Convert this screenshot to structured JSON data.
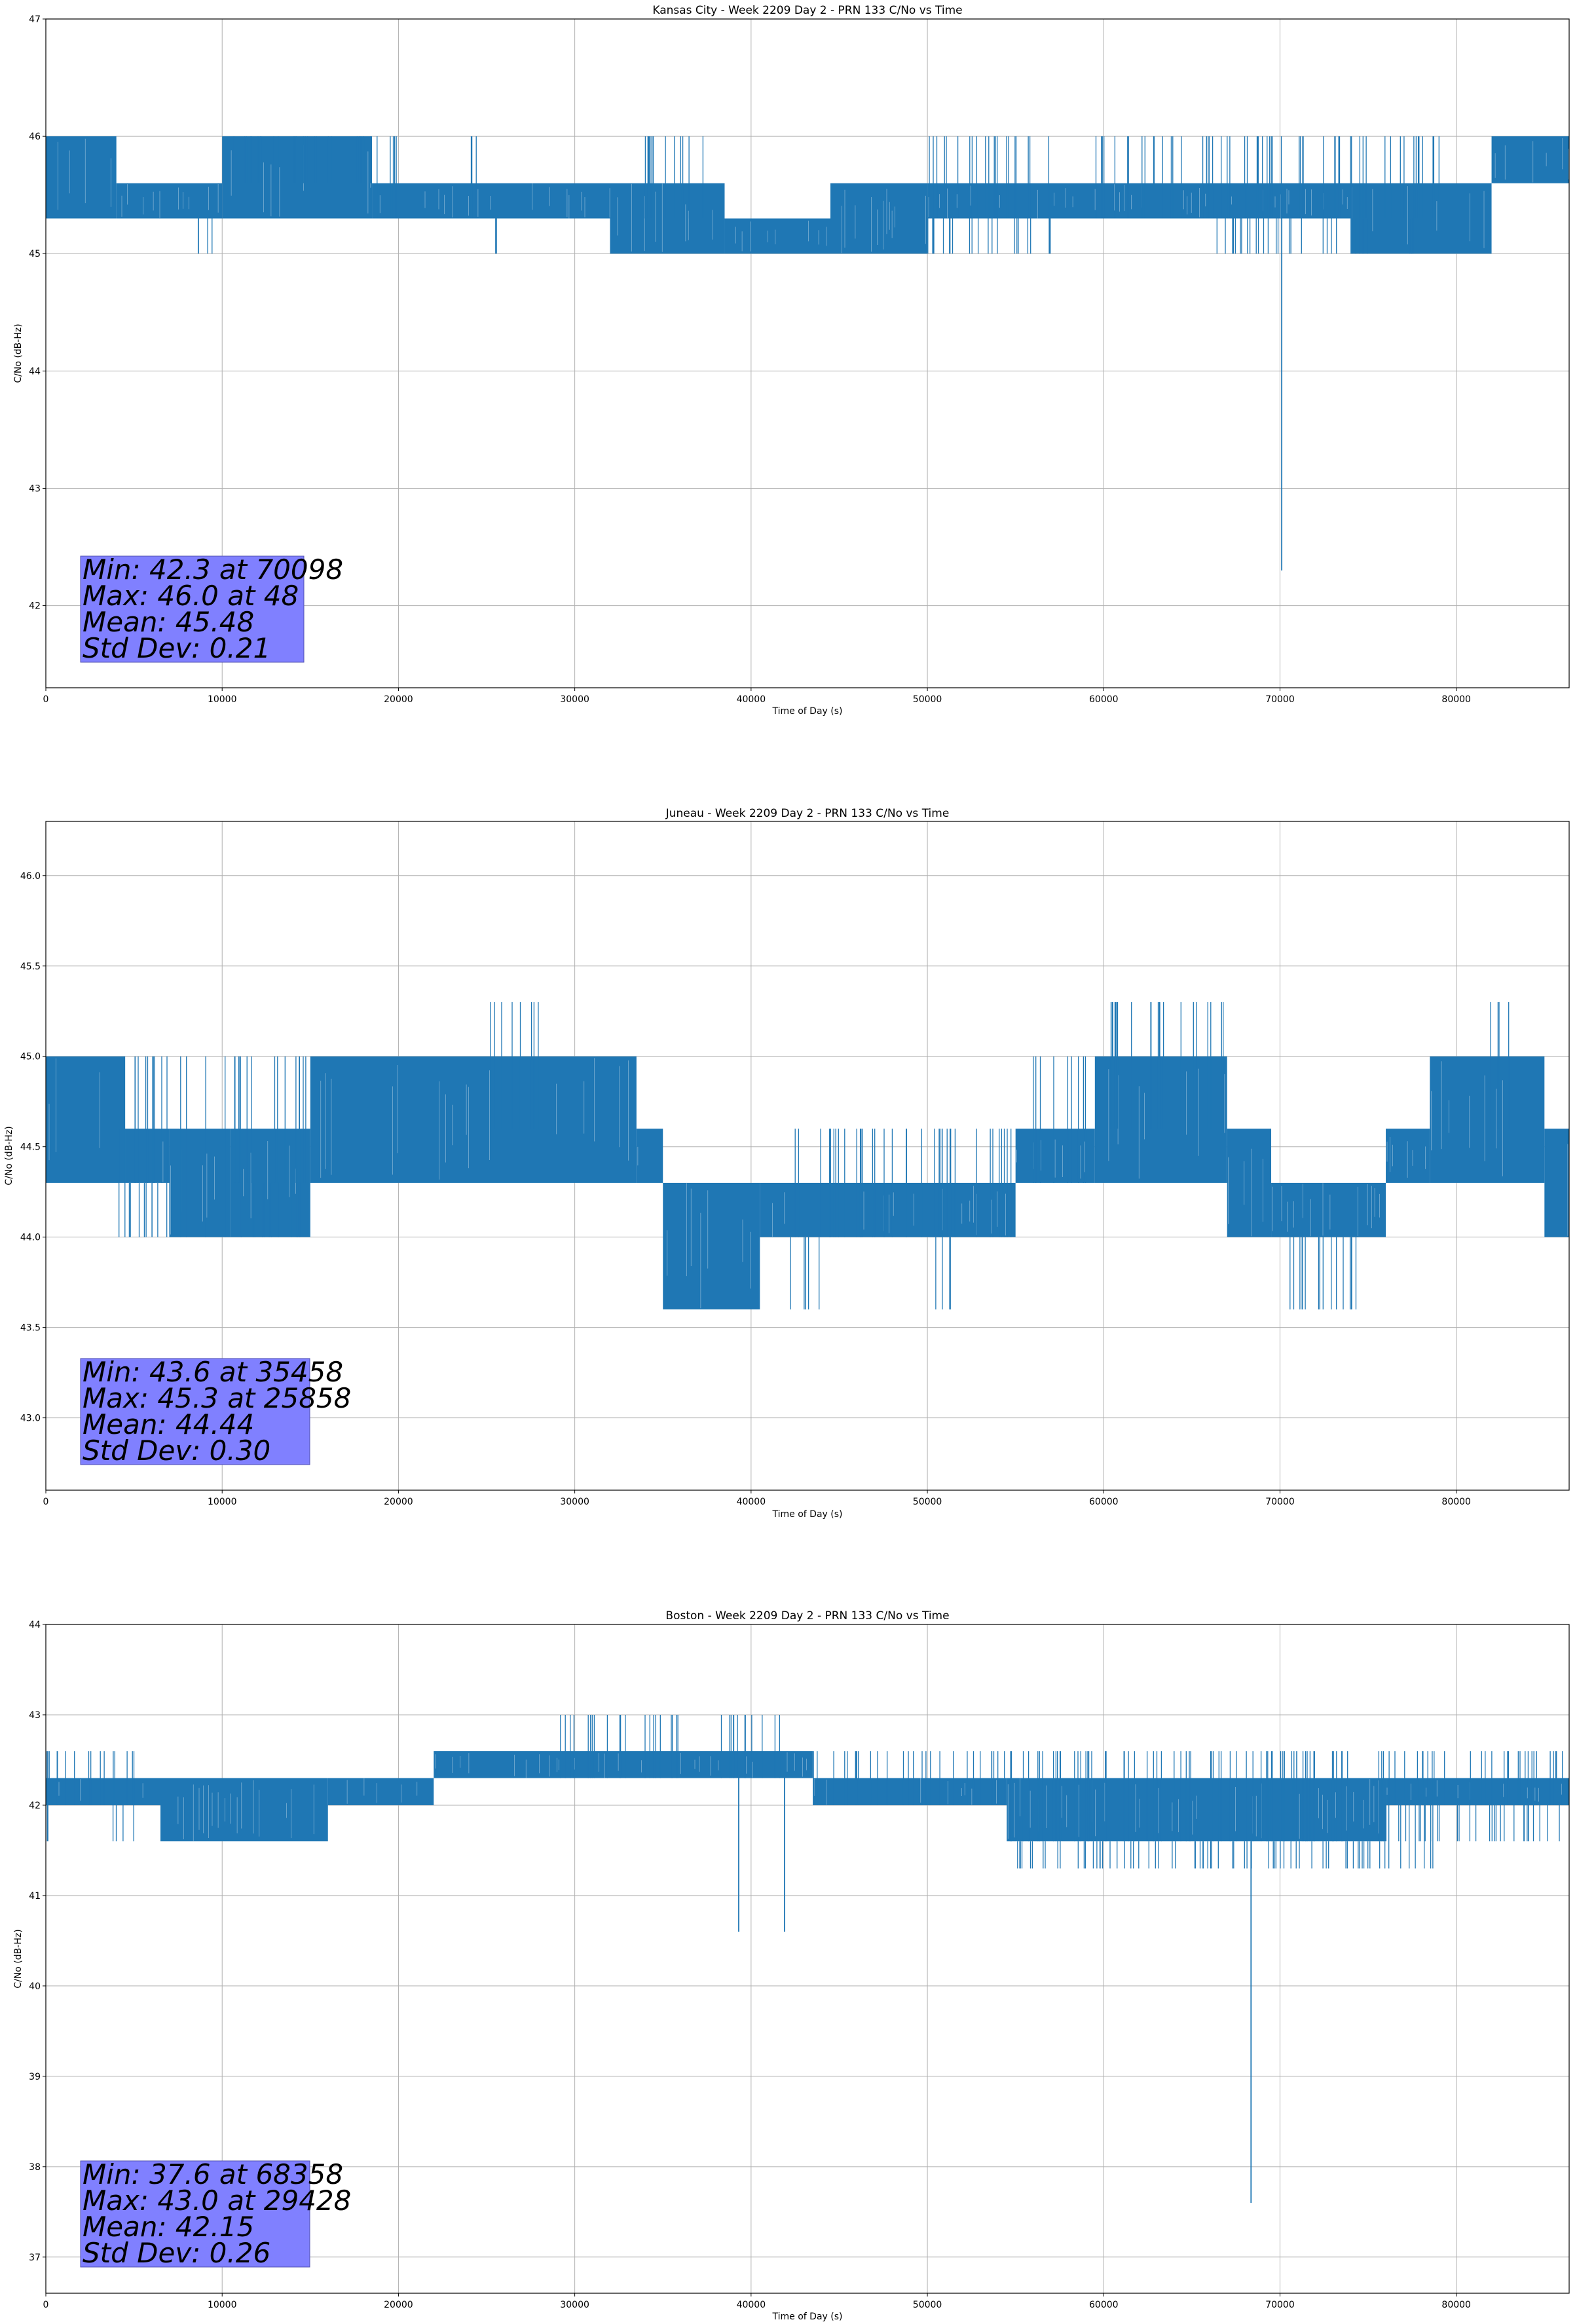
{
  "colors": {
    "line": "#1f77b4",
    "grid": "#b0b0b0",
    "stats_box_fill": "#8080ff",
    "stats_box_edge": "#5050b0",
    "axes": "#000000"
  },
  "chart_data": [
    {
      "type": "line",
      "title": "Kansas City - Week 2209 Day 2 - PRN 133 C/No vs Time",
      "xlabel": "Time of Day (s)",
      "ylabel": "C/No (dB-Hz)",
      "xlim": [
        0,
        86400
      ],
      "ylim": [
        41.3,
        47.0
      ],
      "xticks": [
        0,
        10000,
        20000,
        30000,
        40000,
        50000,
        60000,
        70000,
        80000
      ],
      "xtick_labels": [
        "0",
        "10000",
        "20000",
        "30000",
        "40000",
        "50000",
        "60000",
        "70000",
        "80000"
      ],
      "yticks": [
        42,
        43,
        44,
        45,
        46,
        47
      ],
      "ytick_labels": [
        "42",
        "43",
        "44",
        "45",
        "46",
        "47"
      ],
      "grid": true,
      "series": [
        {
          "name": "C/No",
          "quantization": [
            45.0,
            45.3,
            45.6,
            46.0
          ],
          "segments": [
            {
              "start": 0,
              "end": 4000,
              "base": 45.6,
              "low": 45.3,
              "high": 46.0
            },
            {
              "start": 4000,
              "end": 10000,
              "base": 45.3,
              "low": 45.3,
              "high": 45.6
            },
            {
              "start": 10000,
              "end": 18500,
              "base": 45.6,
              "low": 45.3,
              "high": 46.0
            },
            {
              "start": 18500,
              "end": 32000,
              "base": 45.3,
              "low": 45.3,
              "high": 45.6
            },
            {
              "start": 32000,
              "end": 38500,
              "base": 45.3,
              "low": 45.0,
              "high": 45.6
            },
            {
              "start": 38500,
              "end": 44500,
              "base": 45.0,
              "low": 45.0,
              "high": 45.3
            },
            {
              "start": 44500,
              "end": 50000,
              "base": 45.3,
              "low": 45.0,
              "high": 45.6
            },
            {
              "start": 50000,
              "end": 74000,
              "base": 45.3,
              "low": 45.3,
              "high": 45.6
            },
            {
              "start": 74000,
              "end": 82000,
              "base": 45.3,
              "low": 45.0,
              "high": 45.6
            },
            {
              "start": 82000,
              "end": 86400,
              "base": 45.6,
              "low": 45.6,
              "high": 46.0
            }
          ],
          "sparse_spikes": [
            {
              "start": 10000,
              "end": 20000,
              "value": 46.0
            },
            {
              "start": 24000,
              "end": 25000,
              "value": 46.0
            },
            {
              "start": 33000,
              "end": 36000,
              "value": 46.0
            },
            {
              "start": 36000,
              "end": 37500,
              "value": 46.0
            },
            {
              "start": 50000,
              "end": 52000,
              "value": 46.0
            },
            {
              "start": 52000,
              "end": 57000,
              "value": 46.0
            },
            {
              "start": 59500,
              "end": 66000,
              "value": 46.0
            },
            {
              "start": 66000,
              "end": 71000,
              "value": 46.0
            },
            {
              "start": 71000,
              "end": 80000,
              "value": 46.0
            },
            {
              "start": 9000,
              "end": 9500,
              "value": 45.0
            },
            {
              "start": 25500,
              "end": 26000,
              "value": 45.0
            },
            {
              "start": 49500,
              "end": 57000,
              "value": 45.0
            },
            {
              "start": 66000,
              "end": 75000,
              "value": 45.0
            },
            {
              "start": 77000,
              "end": 78500,
              "value": 45.0
            }
          ],
          "outliers": [
            {
              "x": 8650,
              "y": 45.0
            },
            {
              "x": 70098,
              "y": 42.3
            }
          ]
        }
      ],
      "stats": {
        "min_line": "Min: 42.3 at 70098",
        "max_line": "Max: 46.0 at 48",
        "mean_line": "Mean: 45.48",
        "std_line": "Std Dev: 0.21"
      }
    },
    {
      "type": "line",
      "title": "Juneau - Week 2209 Day 2 - PRN 133 C/No vs Time",
      "xlabel": "Time of Day (s)",
      "ylabel": "C/No (dB-Hz)",
      "xlim": [
        0,
        86400
      ],
      "ylim": [
        42.6,
        46.3
      ],
      "xticks": [
        0,
        10000,
        20000,
        30000,
        40000,
        50000,
        60000,
        70000,
        80000
      ],
      "xtick_labels": [
        "0",
        "10000",
        "20000",
        "30000",
        "40000",
        "50000",
        "60000",
        "70000",
        "80000"
      ],
      "yticks": [
        43.0,
        43.5,
        44.0,
        44.5,
        45.0,
        45.5,
        46.0
      ],
      "ytick_labels": [
        "43.0",
        "43.5",
        "44.0",
        "44.5",
        "45.0",
        "45.5",
        "46.0"
      ],
      "grid": true,
      "series": [
        {
          "name": "C/No",
          "quantization": [
            43.6,
            44.0,
            44.3,
            44.6,
            45.0,
            45.3
          ],
          "segments": [
            {
              "start": 0,
              "end": 4500,
              "base": 44.6,
              "low": 44.3,
              "high": 45.0
            },
            {
              "start": 4500,
              "end": 7000,
              "base": 44.3,
              "low": 44.3,
              "high": 44.6
            },
            {
              "start": 7000,
              "end": 10500,
              "base": 44.0,
              "low": 44.0,
              "high": 44.6
            },
            {
              "start": 10500,
              "end": 15000,
              "base": 44.3,
              "low": 44.0,
              "high": 44.6
            },
            {
              "start": 15000,
              "end": 33500,
              "base": 44.6,
              "low": 44.3,
              "high": 45.0
            },
            {
              "start": 33500,
              "end": 35000,
              "base": 44.3,
              "low": 44.3,
              "high": 44.6
            },
            {
              "start": 35000,
              "end": 40500,
              "base": 43.6,
              "low": 43.6,
              "high": 44.3
            },
            {
              "start": 40500,
              "end": 55000,
              "base": 44.0,
              "low": 44.0,
              "high": 44.3
            },
            {
              "start": 55000,
              "end": 59500,
              "base": 44.3,
              "low": 44.3,
              "high": 44.6
            },
            {
              "start": 59500,
              "end": 67000,
              "base": 44.6,
              "low": 44.3,
              "high": 45.0
            },
            {
              "start": 67000,
              "end": 69500,
              "base": 44.3,
              "low": 44.0,
              "high": 44.6
            },
            {
              "start": 69500,
              "end": 76000,
              "base": 44.0,
              "low": 44.0,
              "high": 44.3
            },
            {
              "start": 76000,
              "end": 78500,
              "base": 44.3,
              "low": 44.3,
              "high": 44.6
            },
            {
              "start": 78500,
              "end": 85000,
              "base": 44.6,
              "low": 44.3,
              "high": 45.0
            },
            {
              "start": 85000,
              "end": 86400,
              "base": 44.3,
              "low": 44.0,
              "high": 44.6
            }
          ],
          "sparse_spikes": [
            {
              "start": 25000,
              "end": 28000,
              "value": 45.3
            },
            {
              "start": 60000,
              "end": 67000,
              "value": 45.3
            },
            {
              "start": 81500,
              "end": 83000,
              "value": 45.3
            },
            {
              "start": 4500,
              "end": 15000,
              "value": 45.0
            },
            {
              "start": 42000,
              "end": 55000,
              "value": 44.6
            },
            {
              "start": 50000,
              "end": 51500,
              "value": 43.6
            },
            {
              "start": 69500,
              "end": 75000,
              "value": 43.6
            },
            {
              "start": 42000,
              "end": 44000,
              "value": 43.6
            },
            {
              "start": 56000,
              "end": 59000,
              "value": 45.0
            },
            {
              "start": 4000,
              "end": 14500,
              "value": 44.0
            }
          ],
          "outliers": [
            {
              "x": 35458,
              "y": 43.6
            }
          ]
        }
      ],
      "stats": {
        "min_line": "Min: 43.6 at 35458",
        "max_line": "Max: 45.3 at 25858",
        "mean_line": "Mean: 44.44",
        "std_line": "Std Dev: 0.30"
      }
    },
    {
      "type": "line",
      "title": "Boston - Week 2209 Day 2 - PRN 133 C/No vs Time",
      "xlabel": "Time of Day (s)",
      "ylabel": "C/No (dB-Hz)",
      "xlim": [
        0,
        86400
      ],
      "ylim": [
        36.6,
        44.0
      ],
      "xticks": [
        0,
        10000,
        20000,
        30000,
        40000,
        50000,
        60000,
        70000,
        80000
      ],
      "xtick_labels": [
        "0",
        "10000",
        "20000",
        "30000",
        "40000",
        "50000",
        "60000",
        "70000",
        "80000"
      ],
      "yticks": [
        37,
        38,
        39,
        40,
        41,
        42,
        43,
        44
      ],
      "ytick_labels": [
        "37",
        "38",
        "39",
        "40",
        "41",
        "42",
        "43",
        "44"
      ],
      "grid": true,
      "series": [
        {
          "name": "C/No",
          "quantization": [
            41.3,
            41.6,
            42.0,
            42.3,
            42.6,
            43.0
          ],
          "segments": [
            {
              "start": 0,
              "end": 6500,
              "base": 42.0,
              "low": 42.0,
              "high": 42.3
            },
            {
              "start": 6500,
              "end": 16000,
              "base": 42.0,
              "low": 41.6,
              "high": 42.3
            },
            {
              "start": 16000,
              "end": 22000,
              "base": 42.0,
              "low": 42.0,
              "high": 42.3
            },
            {
              "start": 22000,
              "end": 43500,
              "base": 42.3,
              "low": 42.3,
              "high": 42.6
            },
            {
              "start": 43500,
              "end": 54500,
              "base": 42.0,
              "low": 42.0,
              "high": 42.3
            },
            {
              "start": 54500,
              "end": 76000,
              "base": 41.6,
              "low": 41.6,
              "high": 42.3
            },
            {
              "start": 76000,
              "end": 86400,
              "base": 42.0,
              "low": 42.0,
              "high": 42.3
            }
          ],
          "sparse_spikes": [
            {
              "start": 0,
              "end": 5500,
              "value": 42.6
            },
            {
              "start": 29000,
              "end": 36000,
              "value": 43.0
            },
            {
              "start": 38000,
              "end": 42000,
              "value": 43.0
            },
            {
              "start": 43500,
              "end": 86400,
              "value": 42.6
            },
            {
              "start": 55000,
              "end": 80000,
              "value": 41.3
            },
            {
              "start": 0,
              "end": 200,
              "value": 41.6
            },
            {
              "start": 3800,
              "end": 5000,
              "value": 41.6
            },
            {
              "start": 76000,
              "end": 86000,
              "value": 41.6
            }
          ],
          "outliers": [
            {
              "x": 39300,
              "y": 40.6
            },
            {
              "x": 41900,
              "y": 40.6
            },
            {
              "x": 68358,
              "y": 37.6
            }
          ]
        }
      ],
      "stats": {
        "min_line": "Min: 37.6 at 68358",
        "max_line": "Max: 43.0 at 29428",
        "mean_line": "Mean: 42.15",
        "std_line": "Std Dev: 0.26"
      }
    }
  ]
}
